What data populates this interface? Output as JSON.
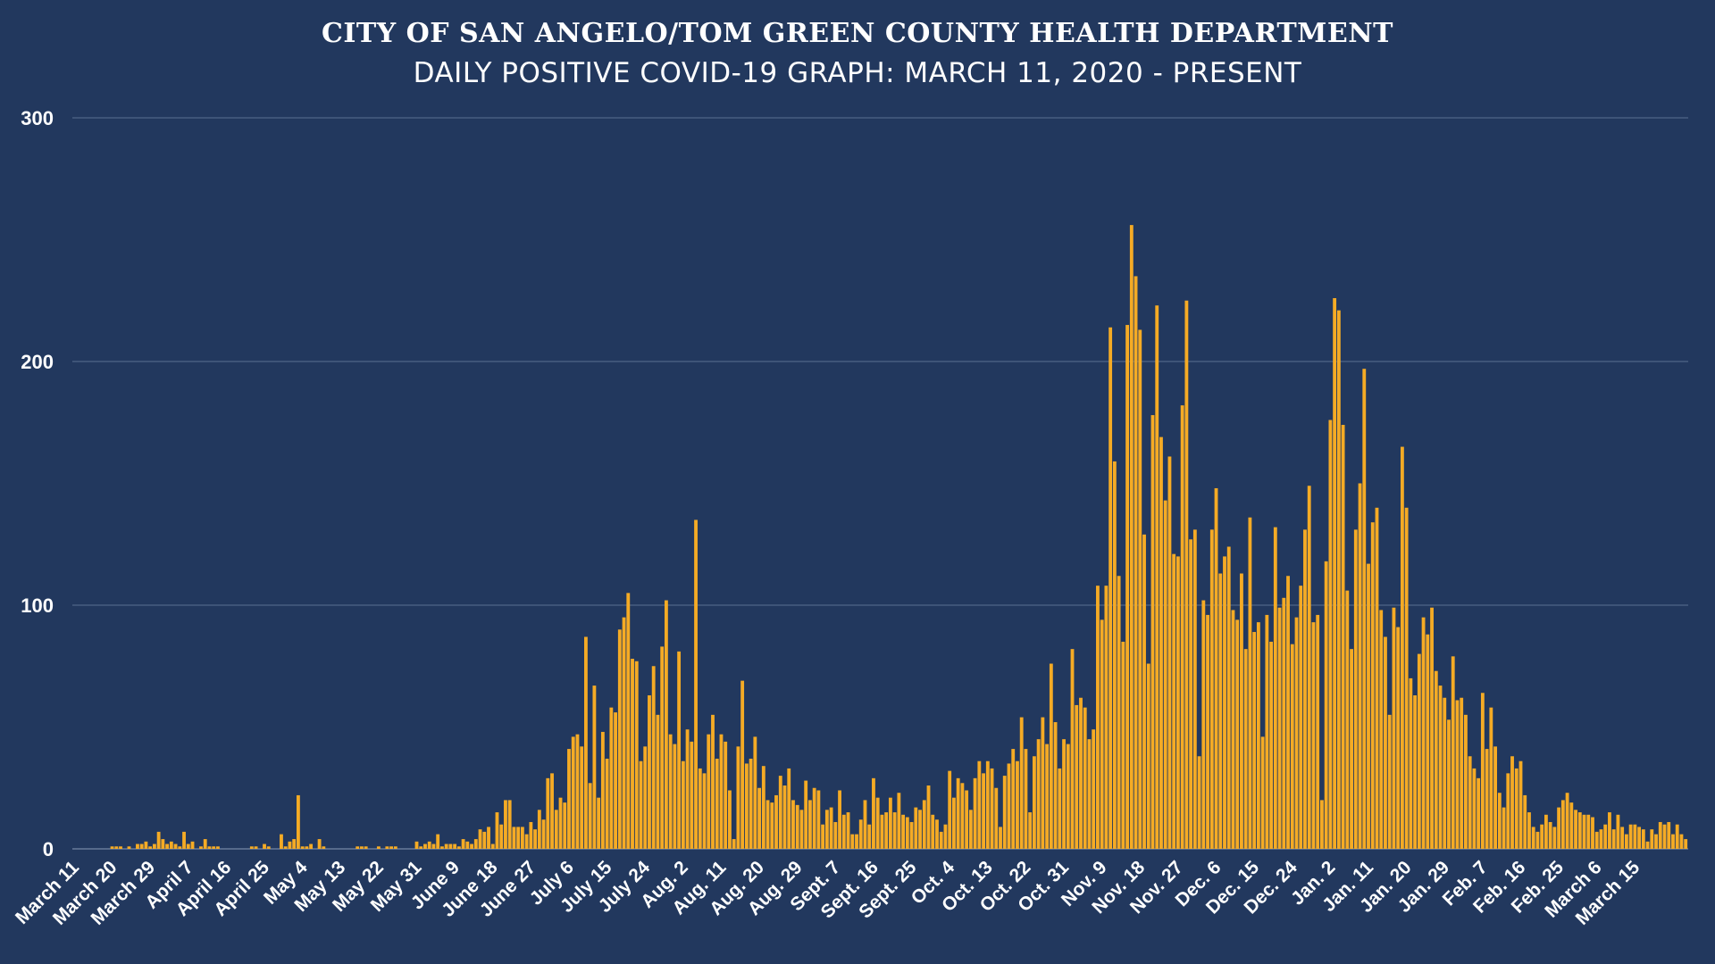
{
  "chart_data": {
    "type": "bar",
    "title": "CITY OF SAN ANGELO/TOM GREEN COUNTY HEALTH DEPARTMENT",
    "subtitle": "DAILY POSITIVE COVID-19 GRAPH: MARCH 11, 2020 - PRESENT",
    "x_start": "March 11, 2020",
    "x_tick_labels": [
      "March 11",
      "March 20",
      "March 29",
      "April 7",
      "April 16",
      "April 25",
      "May 4",
      "May 13",
      "May 22",
      "May 31",
      "June 9",
      "June 18",
      "June 27",
      "July 6",
      "July 15",
      "July 24",
      "Aug. 2",
      "Aug. 11",
      "Aug. 20",
      "Aug. 29",
      "Sept. 7",
      "Sept. 16",
      "Sept. 25",
      "Oct. 4",
      "Oct. 13",
      "Oct. 22",
      "Oct. 31",
      "Nov. 9",
      "Nov. 18",
      "Nov. 27",
      "Dec. 6",
      "Dec. 15",
      "Dec. 24",
      "Jan. 2",
      "Jan. 11",
      "Jan. 20",
      "Jan. 29",
      "Feb. 7",
      "Feb. 16",
      "Feb. 25",
      "March 6",
      "March 15"
    ],
    "y_ticks": [
      0,
      100,
      200,
      300
    ],
    "ylim": [
      0,
      300
    ],
    "grid": true,
    "bar_color": "#f5ab25",
    "values": [
      0,
      0,
      0,
      0,
      0,
      0,
      0,
      0,
      0,
      1,
      1,
      1,
      0,
      1,
      0,
      2,
      2,
      3,
      1,
      2,
      7,
      4,
      2,
      3,
      2,
      1,
      7,
      2,
      3,
      0,
      1,
      4,
      1,
      1,
      1,
      0,
      0,
      0,
      0,
      0,
      0,
      0,
      1,
      1,
      0,
      2,
      1,
      0,
      0,
      6,
      1,
      3,
      4,
      22,
      1,
      1,
      2,
      0,
      4,
      1,
      0,
      0,
      0,
      0,
      0,
      0,
      0,
      1,
      1,
      1,
      0,
      0,
      1,
      0,
      1,
      1,
      1,
      0,
      0,
      0,
      0,
      3,
      1,
      2,
      3,
      2,
      6,
      1,
      2,
      2,
      2,
      1,
      4,
      3,
      2,
      4,
      8,
      7,
      9,
      2,
      15,
      10,
      20,
      20,
      9,
      9,
      9,
      6,
      11,
      8,
      16,
      12,
      29,
      31,
      16,
      21,
      19,
      41,
      46,
      47,
      42,
      87,
      27,
      67,
      21,
      48,
      37,
      58,
      56,
      90,
      95,
      105,
      78,
      77,
      36,
      42,
      63,
      75,
      55,
      83,
      102,
      47,
      43,
      81,
      36,
      49,
      44,
      135,
      33,
      31,
      47,
      55,
      37,
      47,
      44,
      24,
      4,
      42,
      69,
      35,
      37,
      46,
      25,
      34,
      20,
      19,
      22,
      30,
      26,
      33,
      20,
      18,
      16,
      28,
      20,
      25,
      24,
      10,
      16,
      17,
      11,
      24,
      14,
      15,
      6,
      6,
      12,
      20,
      10,
      29,
      21,
      14,
      15,
      21,
      15,
      23,
      14,
      13,
      11,
      17,
      16,
      20,
      26,
      14,
      12,
      7,
      10,
      32,
      21,
      29,
      27,
      24,
      16,
      29,
      36,
      31,
      36,
      33,
      25,
      9,
      30,
      35,
      41,
      36,
      54,
      41,
      15,
      38,
      45,
      54,
      43,
      76,
      52,
      33,
      45,
      43,
      82,
      59,
      62,
      58,
      45,
      49,
      108,
      94,
      108,
      214,
      159,
      112,
      85,
      215,
      256,
      235,
      213,
      129,
      76,
      178,
      223,
      169,
      143,
      161,
      121,
      120,
      182,
      225,
      127,
      131,
      38,
      102,
      96,
      131,
      148,
      113,
      120,
      124,
      98,
      94,
      113,
      82,
      136,
      89,
      93,
      46,
      96,
      85,
      132,
      99,
      103,
      112,
      84,
      95,
      108,
      131,
      149,
      93,
      96,
      20,
      118,
      176,
      226,
      221,
      174,
      106,
      82,
      131,
      150,
      197,
      117,
      134,
      140,
      98,
      87,
      55,
      99,
      91,
      165,
      140,
      70,
      63,
      80,
      95,
      88,
      99,
      73,
      67,
      62,
      53,
      79,
      61,
      62,
      55,
      38,
      33,
      29,
      64,
      41,
      58,
      42,
      23,
      17,
      31,
      38,
      33,
      36,
      22,
      15,
      9,
      7,
      10,
      14,
      11,
      9,
      17,
      20,
      23,
      19,
      16,
      15,
      14,
      14,
      13,
      7,
      8,
      10,
      15,
      8,
      14,
      9,
      6,
      10,
      10,
      9,
      8,
      3,
      8,
      6,
      11,
      10,
      11,
      6,
      10,
      6,
      4
    ]
  }
}
